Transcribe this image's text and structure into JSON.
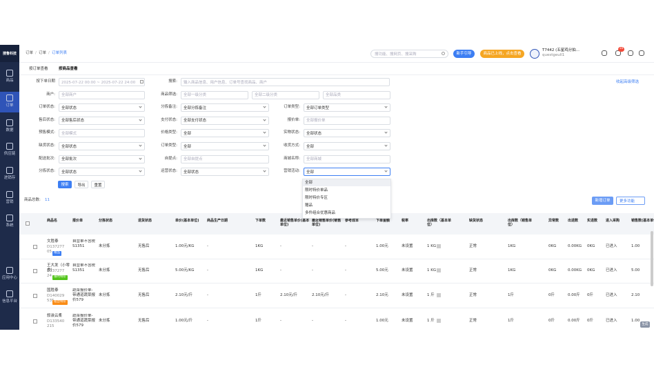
{
  "sidebar": {
    "logo": "搜鲁科技",
    "items": [
      "商品",
      "订单",
      "数据",
      "供应链",
      "进销存",
      "营销",
      "系统",
      "应用中心",
      "信息平台"
    ]
  },
  "topbar": {
    "breadcrumb": [
      "订单",
      "订单",
      "订单列表"
    ],
    "separator": "/",
    "search_placeholder": "搜功能、搜网页、搜采购",
    "guide_button": "新手引导",
    "promo_button": "商品已上线，点击查看",
    "user_name": "T7442 (五星鸡分拍...",
    "user_id": "questgeull1",
    "badge": "10"
  },
  "tabs": [
    "按订单查看",
    "按商品查看"
  ],
  "filters": {
    "left": [
      {
        "label": "按下单日期",
        "value": "2025-07-22 00:00 ~ 2025-07-22 24:00"
      },
      {
        "label": "商户:",
        "value": "全部商户"
      },
      {
        "label": "订单状态:",
        "value": "全部状态",
        "select": true
      },
      {
        "label": "售后状态:",
        "value": "全部售后状态",
        "select": true
      },
      {
        "label": "预售模式:",
        "value": "全部模式"
      },
      {
        "label": "缺货状态:",
        "value": "全部状态",
        "select": true
      },
      {
        "label": "配送批次:",
        "value": "全部批次",
        "select": true
      },
      {
        "label": "分拣状态:",
        "value": "全部状态",
        "select": true
      }
    ],
    "middle": [
      {
        "label": "搜索:",
        "value": "输入商品信息、用户信息、订单号查找商品、商户"
      },
      {
        "label": "商品筛选:",
        "values": [
          "全部一级分类",
          "全部二级分类",
          "全部品类"
        ]
      },
      {
        "label": "分拣备注:",
        "value": "全部分拣备注",
        "select": true
      },
      {
        "label": "支付状态:",
        "value": "全部支付状态",
        "select": true
      },
      {
        "label": "价格类型:",
        "value": "全部",
        "select": true
      },
      {
        "label": "订单类型:",
        "value": "全部",
        "select": true
      },
      {
        "label": "自提点:",
        "value": "全部自提点"
      },
      {
        "label": "运营状态:",
        "value": "全部状态",
        "select": true
      }
    ],
    "right": [
      {
        "label": "订单类型:",
        "value": "全部订单类型",
        "select": true
      },
      {
        "label": "报价单:",
        "value": "全部报价单"
      },
      {
        "label": "实物状态:",
        "value": "全部状态",
        "select": true
      },
      {
        "label": "收货方式:",
        "value": "全部",
        "select": true
      },
      {
        "label": "商城名称:",
        "value": "全部商城"
      },
      {
        "label": "营销活动:",
        "value": "全部",
        "select": true
      }
    ],
    "collapse_link": "收起高级筛选",
    "buttons": [
      "搜索",
      "导出",
      "重置"
    ],
    "dropdown_options": [
      "全部",
      "限时特价单品",
      "限时特价专区",
      "赠品",
      "多件组合优惠商品"
    ]
  },
  "summary": {
    "label": "商品总数:",
    "count": "11",
    "add_button": "新增订单",
    "more_button": "更多功能"
  },
  "table": {
    "headers": [
      "商品名",
      "报价单",
      "分拣状态",
      "退货状态",
      "单价(基本单位)",
      "商品生产日期",
      "下单数",
      "最近销售单价(基本单位)",
      "最近销售单价(销售单位)",
      "参考成本",
      "下单金额",
      "税率",
      "出库数（基本单位）",
      "缺货状态",
      "出库数（销售单位）",
      "异常数",
      "出退数",
      "实退数",
      "进入采购",
      "销售数(基本单位)"
    ],
    "rows": [
      {
        "name": "文胜泰",
        "code": "D137277 05",
        "tag": "赠品",
        "cells": [
          "自营单不含税S1351",
          "未分拣",
          "无售后",
          "1.00元/KG",
          "-",
          "1KG",
          "-",
          "-",
          "-",
          "1.00元",
          "未设置",
          "1 KG",
          "正常",
          "1KG",
          "0KG",
          "0.00KG",
          "0KG",
          "已进入",
          "1.00"
        ]
      },
      {
        "name": "王大发（小零食）",
        "code": "D137277 24",
        "tag": "限时特价",
        "cells": [
          "自营单不含税S1351",
          "未分拣",
          "无售后",
          "5.00元/KG",
          "-",
          "1KG",
          "-",
          "-",
          "-",
          "5.00元",
          "未设置",
          "1 KG",
          "正常",
          "1KG",
          "0KG",
          "0.00KG",
          "0KG",
          "已进入",
          "5.00"
        ]
      },
      {
        "name": "国胜泰",
        "code": "D140029 535",
        "tag": "组合特价",
        "cells": [
          "蔬菜报价单-带通道蔬菜报价579",
          "未分拣",
          "无售后",
          "2.10元/斤",
          "-",
          "1斤",
          "2.10元/斤",
          "2.10元/斤",
          "-",
          "2.10元",
          "未设置",
          "1 斤",
          "正常",
          "1斤",
          "0斤",
          "0.00斤",
          "0斤",
          "已进入",
          "2.10"
        ]
      },
      {
        "name": "叙诶云柔",
        "code": "D133540 215",
        "cells": [
          "蔬菜报价单-带通道蔬菜报价579",
          "未分拣",
          "无售后",
          "1.00元/斤",
          "-",
          "1斤",
          "-",
          "-",
          "-",
          "1.00元",
          "未设置",
          "1 斤",
          "正常",
          "1斤",
          "0斤",
          "0.00斤",
          "0斤",
          "已进入",
          "1.00"
        ]
      }
    ]
  },
  "corner_chip": "生成"
}
